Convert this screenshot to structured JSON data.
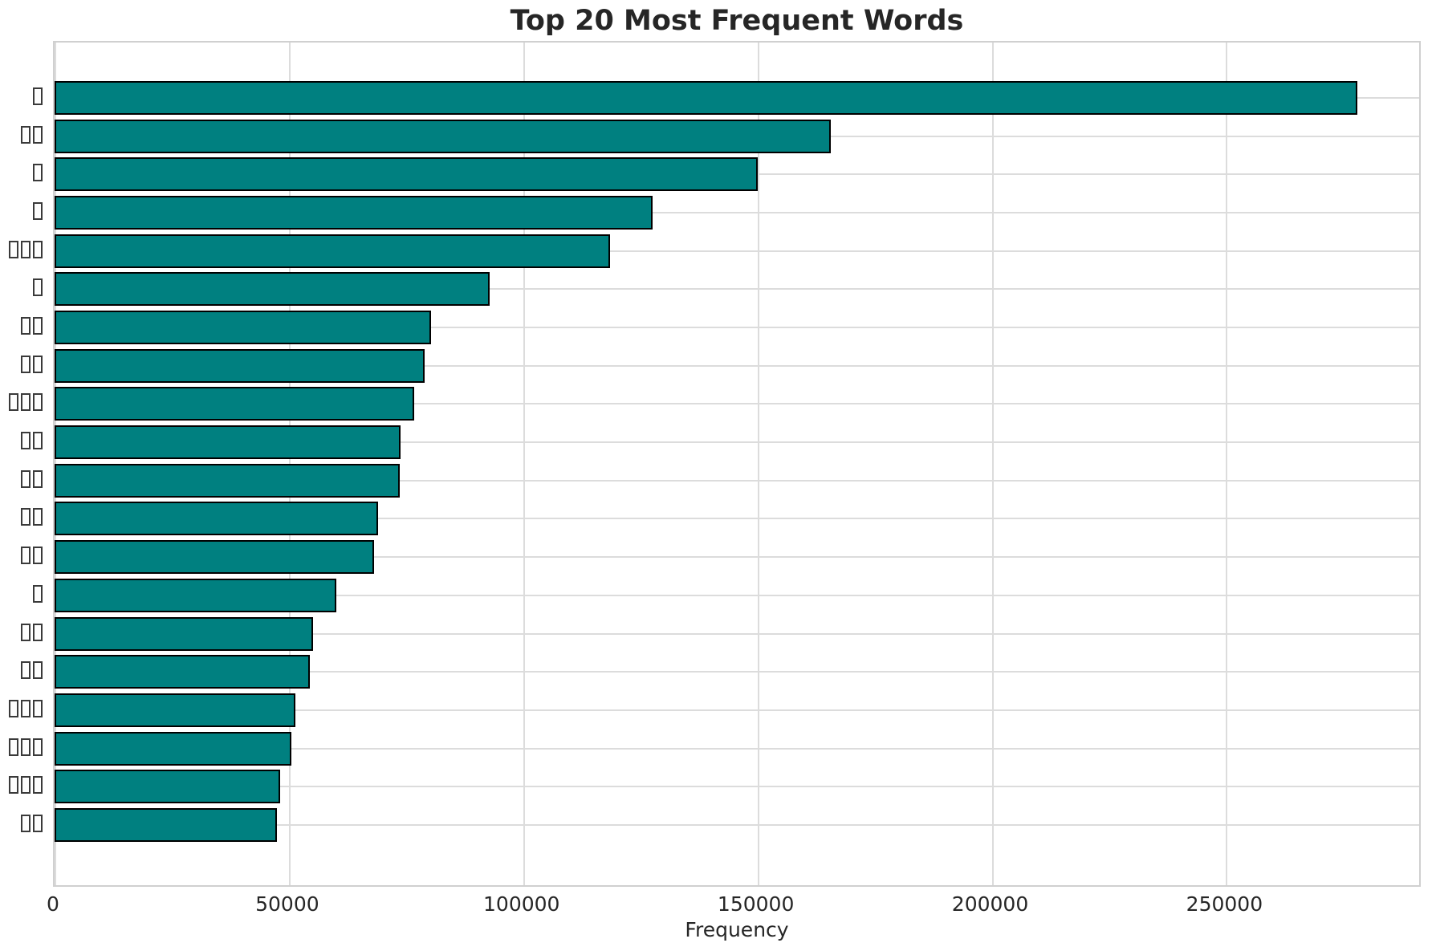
{
  "chart_data": {
    "type": "bar",
    "orientation": "horizontal",
    "title": "Top 20 Most Frequent Words",
    "xlabel": "Frequency",
    "ylabel": "",
    "grid": true,
    "legend": false,
    "xlim": [
      0,
      291900
    ],
    "x_ticks": [
      0,
      50000,
      100000,
      150000,
      200000,
      250000
    ],
    "x_tick_labels": [
      "0",
      "50000",
      "100000",
      "150000",
      "200000",
      "250000"
    ],
    "categories": [
      "□",
      "□□",
      "□",
      "□",
      "□□□",
      "□",
      "□□",
      "□□",
      "□□□",
      "□□",
      "□□",
      "□□",
      "□□",
      "□",
      "□□",
      "□□",
      "□□□",
      "□□□",
      "□□□",
      "□□"
    ],
    "values": [
      278000,
      165700,
      150000,
      127700,
      118600,
      92800,
      80300,
      78900,
      76700,
      73900,
      73600,
      69000,
      68200,
      60200,
      55100,
      54500,
      51400,
      50500,
      48200,
      47500
    ],
    "colors": {
      "bar_fill": "#008080",
      "bar_edge": "#000000",
      "grid_line": "#dcdcdc",
      "axis_spine": "#d0d0d0",
      "text": "#262626",
      "background": "#ffffff"
    }
  }
}
